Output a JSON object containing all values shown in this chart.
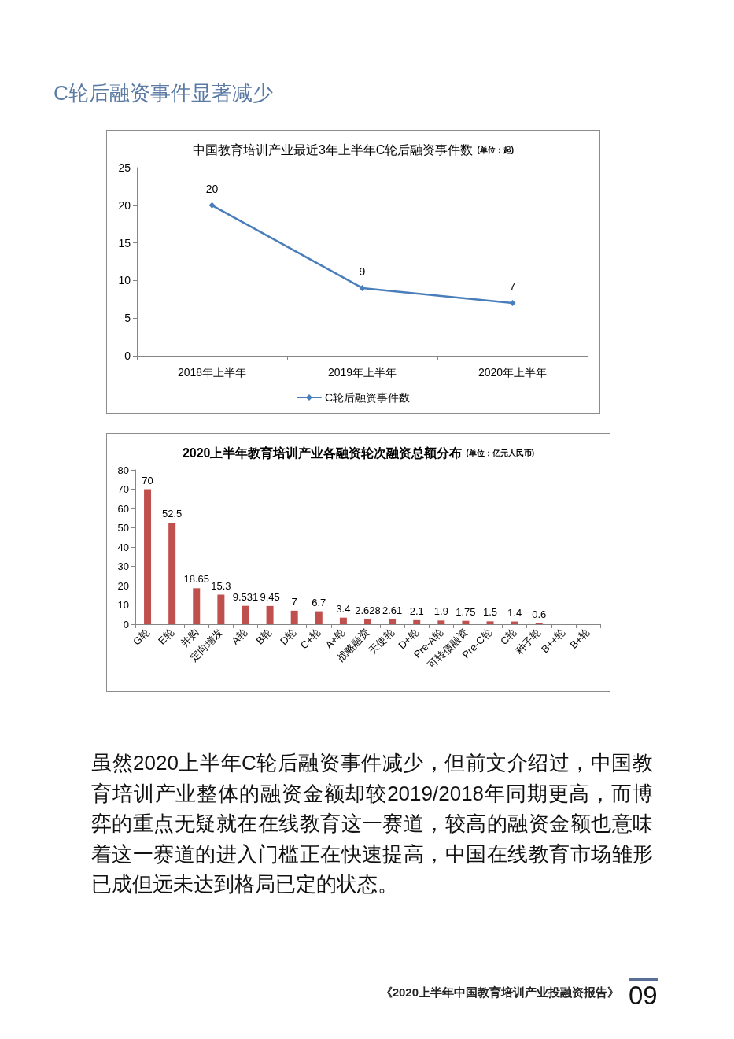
{
  "chart_data": [
    {
      "type": "line",
      "title": "中国教育培训产业最近3年上半年C轮后融资事件数",
      "subtitle": "(单位：起)",
      "categories": [
        "2018年上半年",
        "2019年上半年",
        "2020年上半年"
      ],
      "series": [
        {
          "name": "C轮后融资事件数",
          "color": "#4a7ebb",
          "values": [
            20,
            9,
            7
          ]
        }
      ],
      "ylim": [
        0,
        25
      ],
      "yticks": [
        0,
        5,
        10,
        15,
        20,
        25
      ],
      "legend": "bottom",
      "marker": "diamond",
      "line_style": "solid",
      "data_labels": true,
      "annotations": [
        "C轮后融资事件显著减少"
      ]
    },
    {
      "type": "bar",
      "title": "2020上半年教育培训产业各融资轮次融资总额分布",
      "subtitle": "(单位：亿元人民币)",
      "categories": [
        "G轮",
        "E轮",
        "并购",
        "定向增发",
        "A轮",
        "B轮",
        "D轮",
        "C+轮",
        "A+轮",
        "战略融资",
        "天使轮",
        "D+轮",
        "Pre-A轮",
        "可转债融资",
        "Pre-C轮",
        "C轮",
        "种子轮",
        "B++轮",
        "B+轮"
      ],
      "values": [
        70,
        52.5,
        18.65,
        15.3,
        9.531,
        9.45,
        7,
        6.7,
        3.4,
        2.628,
        2.61,
        2.1,
        1.9,
        1.75,
        1.5,
        1.4,
        0.6,
        null,
        null
      ],
      "color": "#c0504d",
      "ylim": [
        0,
        80
      ],
      "yticks": [
        0,
        10,
        20,
        30,
        40,
        50,
        60,
        70,
        80
      ],
      "data_labels": true,
      "annotations": [
        "虽然2020上半年C轮后融资事件减少，但前文介绍过，中国教育培训产业整体的融资金额却较2019/2018年同期更高，而博弈的重点无疑就在在线教育这一赛道，较高的融资金额也意味着这一赛道的进入门槛正在快速提高，中国在线教育市场雏形已成但远未达到格局已定的状态。",
        "《2020上半年中国教育培训产业投融资报告》",
        "09"
      ]
    }
  ]
}
